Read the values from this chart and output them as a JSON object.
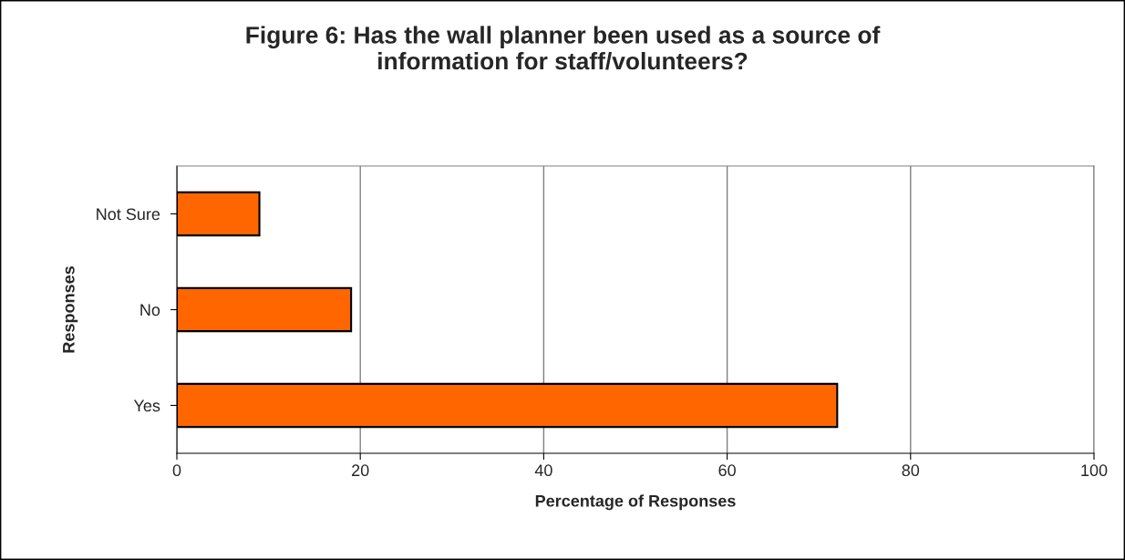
{
  "chart_data": {
    "type": "bar",
    "orientation": "horizontal",
    "title": "Figure 6: Has the wall planner been used as a source of\ninformation for staff/volunteers?",
    "xlabel": "Percentage of Responses",
    "ylabel": "Responses",
    "categories": [
      "Not Sure",
      "No",
      "Yes"
    ],
    "values": [
      9,
      19,
      72
    ],
    "color": "#ff6600",
    "xlim": [
      0,
      100
    ],
    "xticks": [
      0,
      20,
      40,
      60,
      80,
      100
    ],
    "grid": "x"
  }
}
